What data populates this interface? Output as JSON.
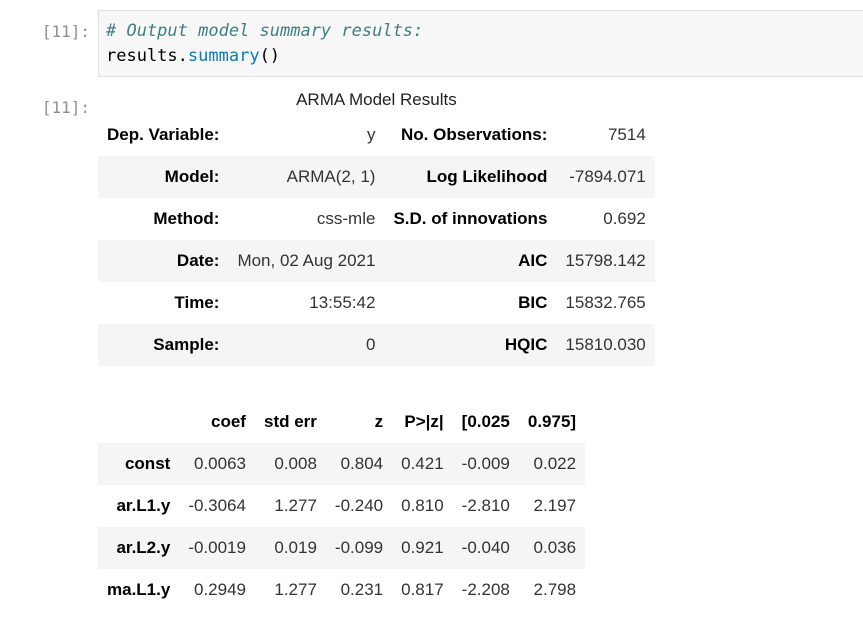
{
  "input_cell": {
    "prompt": "[11]:",
    "code_comment": "# Output model summary results:",
    "code_object": "results",
    "code_dot": ".",
    "code_method": "summary",
    "code_parens": "()"
  },
  "output_cell": {
    "prompt": "[11]:",
    "title": "ARMA Model Results",
    "rows": [
      {
        "label1": "Dep. Variable:",
        "value1": "y",
        "label2": "No. Observations:",
        "value2": "7514"
      },
      {
        "label1": "Model:",
        "value1": "ARMA(2, 1)",
        "label2": "Log Likelihood",
        "value2": "-7894.071"
      },
      {
        "label1": "Method:",
        "value1": "css-mle",
        "label2": "S.D. of innovations",
        "value2": "0.692"
      },
      {
        "label1": "Date:",
        "value1": "Mon, 02 Aug 2021",
        "label2": "AIC",
        "value2": "15798.142"
      },
      {
        "label1": "Time:",
        "value1": "13:55:42",
        "label2": "BIC",
        "value2": "15832.765"
      },
      {
        "label1": "Sample:",
        "value1": "0",
        "label2": "HQIC",
        "value2": "15810.030"
      }
    ],
    "coef_table": {
      "headers": [
        "",
        "coef",
        "std err",
        "z",
        "P>|z|",
        "[0.025",
        "0.975]"
      ],
      "rows": [
        {
          "name": "const",
          "coef": "0.0063",
          "std_err": "0.008",
          "z": "0.804",
          "p": "0.421",
          "lo": "-0.009",
          "hi": "0.022"
        },
        {
          "name": "ar.L1.y",
          "coef": "-0.3064",
          "std_err": "1.277",
          "z": "-0.240",
          "p": "0.810",
          "lo": "-2.810",
          "hi": "2.197"
        },
        {
          "name": "ar.L2.y",
          "coef": "-0.0019",
          "std_err": "0.019",
          "z": "-0.099",
          "p": "0.921",
          "lo": "-0.040",
          "hi": "0.036"
        },
        {
          "name": "ma.L1.y",
          "coef": "0.2949",
          "std_err": "1.277",
          "z": "0.231",
          "p": "0.817",
          "lo": "-2.208",
          "hi": "2.798"
        }
      ]
    }
  },
  "colors": {
    "comment": "#408080",
    "method": "#0b7ab5",
    "prompt": "#8f8f8f",
    "cell_bg": "#f7f7f7",
    "stripe": "#f5f5f5"
  }
}
